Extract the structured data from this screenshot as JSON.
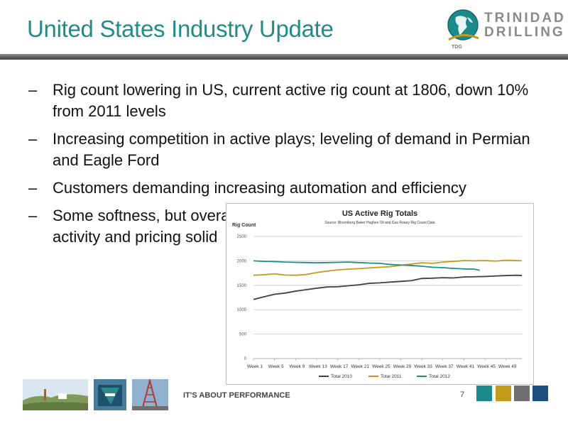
{
  "slide": {
    "title": "United States Industry Update",
    "logo": {
      "line1": "TRINIDAD",
      "line2": "DRILLING",
      "abbr": "TDG"
    },
    "bullets": [
      "Rig count lowering in US, current active rig count at 1806, down 10% from 2011 levels",
      "Increasing competition in active plays; leveling of demand in Permian and Eagle Ford",
      "Customers demanding increasing automation and efficiency",
      "Some softness, but overall activity and pricing solid"
    ],
    "bullet_marker": "–",
    "footer": {
      "tagline": "IT'S ABOUT PERFORMANCE",
      "page": "7"
    },
    "colors": {
      "title": "#1f8c8a",
      "swatches": [
        "#1a8a8a",
        "#c49a1a",
        "#6f6f6f",
        "#1d4f80"
      ]
    }
  },
  "chart_data": {
    "type": "line",
    "title": "US Active Rig Totals",
    "subtitle": "Source: Bloomberg Baker Hughes Oil and Gas Rotary Rig Count Data",
    "ylabel": "Rig Count",
    "ylim": [
      0,
      2500
    ],
    "yticks": [
      "0",
      "500",
      "1000",
      "1500",
      "2000",
      "2500"
    ],
    "x_tick_labels": [
      "Week 1",
      "Week 5",
      "Week 9",
      "Week 13",
      "Week 17",
      "Week 21",
      "Week 25",
      "Week 29",
      "Week 33",
      "Week 37",
      "Week 41",
      "Week 45",
      "Week 49"
    ],
    "grid": true,
    "legend_position": "bottom",
    "series": [
      {
        "name": "Total 2010",
        "color": "#404040",
        "x": [
          1,
          3,
          5,
          7,
          9,
          11,
          13,
          15,
          17,
          19,
          21,
          23,
          25,
          27,
          29,
          31,
          33,
          35,
          37,
          39,
          41,
          43,
          45,
          47,
          49,
          51,
          52
        ],
        "values": [
          1210,
          1265,
          1315,
          1340,
          1380,
          1410,
          1440,
          1465,
          1470,
          1490,
          1510,
          1540,
          1550,
          1565,
          1580,
          1595,
          1640,
          1645,
          1655,
          1650,
          1670,
          1675,
          1680,
          1690,
          1700,
          1705,
          1700
        ]
      },
      {
        "name": "Total 2011",
        "color": "#c49a1a",
        "x": [
          1,
          3,
          5,
          7,
          9,
          11,
          13,
          15,
          17,
          19,
          21,
          23,
          25,
          27,
          29,
          31,
          33,
          35,
          37,
          39,
          41,
          43,
          45,
          47,
          49,
          51,
          52
        ],
        "values": [
          1705,
          1715,
          1735,
          1710,
          1705,
          1720,
          1760,
          1790,
          1815,
          1830,
          1840,
          1855,
          1870,
          1880,
          1910,
          1935,
          1960,
          1950,
          1975,
          1990,
          2005,
          2000,
          2005,
          1995,
          2010,
          2005,
          2000
        ]
      },
      {
        "name": "Total 2012",
        "color": "#1f8c8a",
        "x": [
          1,
          3,
          5,
          7,
          9,
          11,
          13,
          15,
          17,
          19,
          21,
          23,
          25,
          27,
          29,
          31,
          33,
          35,
          37,
          39,
          41,
          43,
          44
        ],
        "values": [
          2000,
          1990,
          1985,
          1975,
          1970,
          1965,
          1960,
          1965,
          1970,
          1975,
          1965,
          1955,
          1950,
          1925,
          1915,
          1905,
          1890,
          1870,
          1860,
          1845,
          1835,
          1830,
          1806
        ]
      }
    ]
  }
}
